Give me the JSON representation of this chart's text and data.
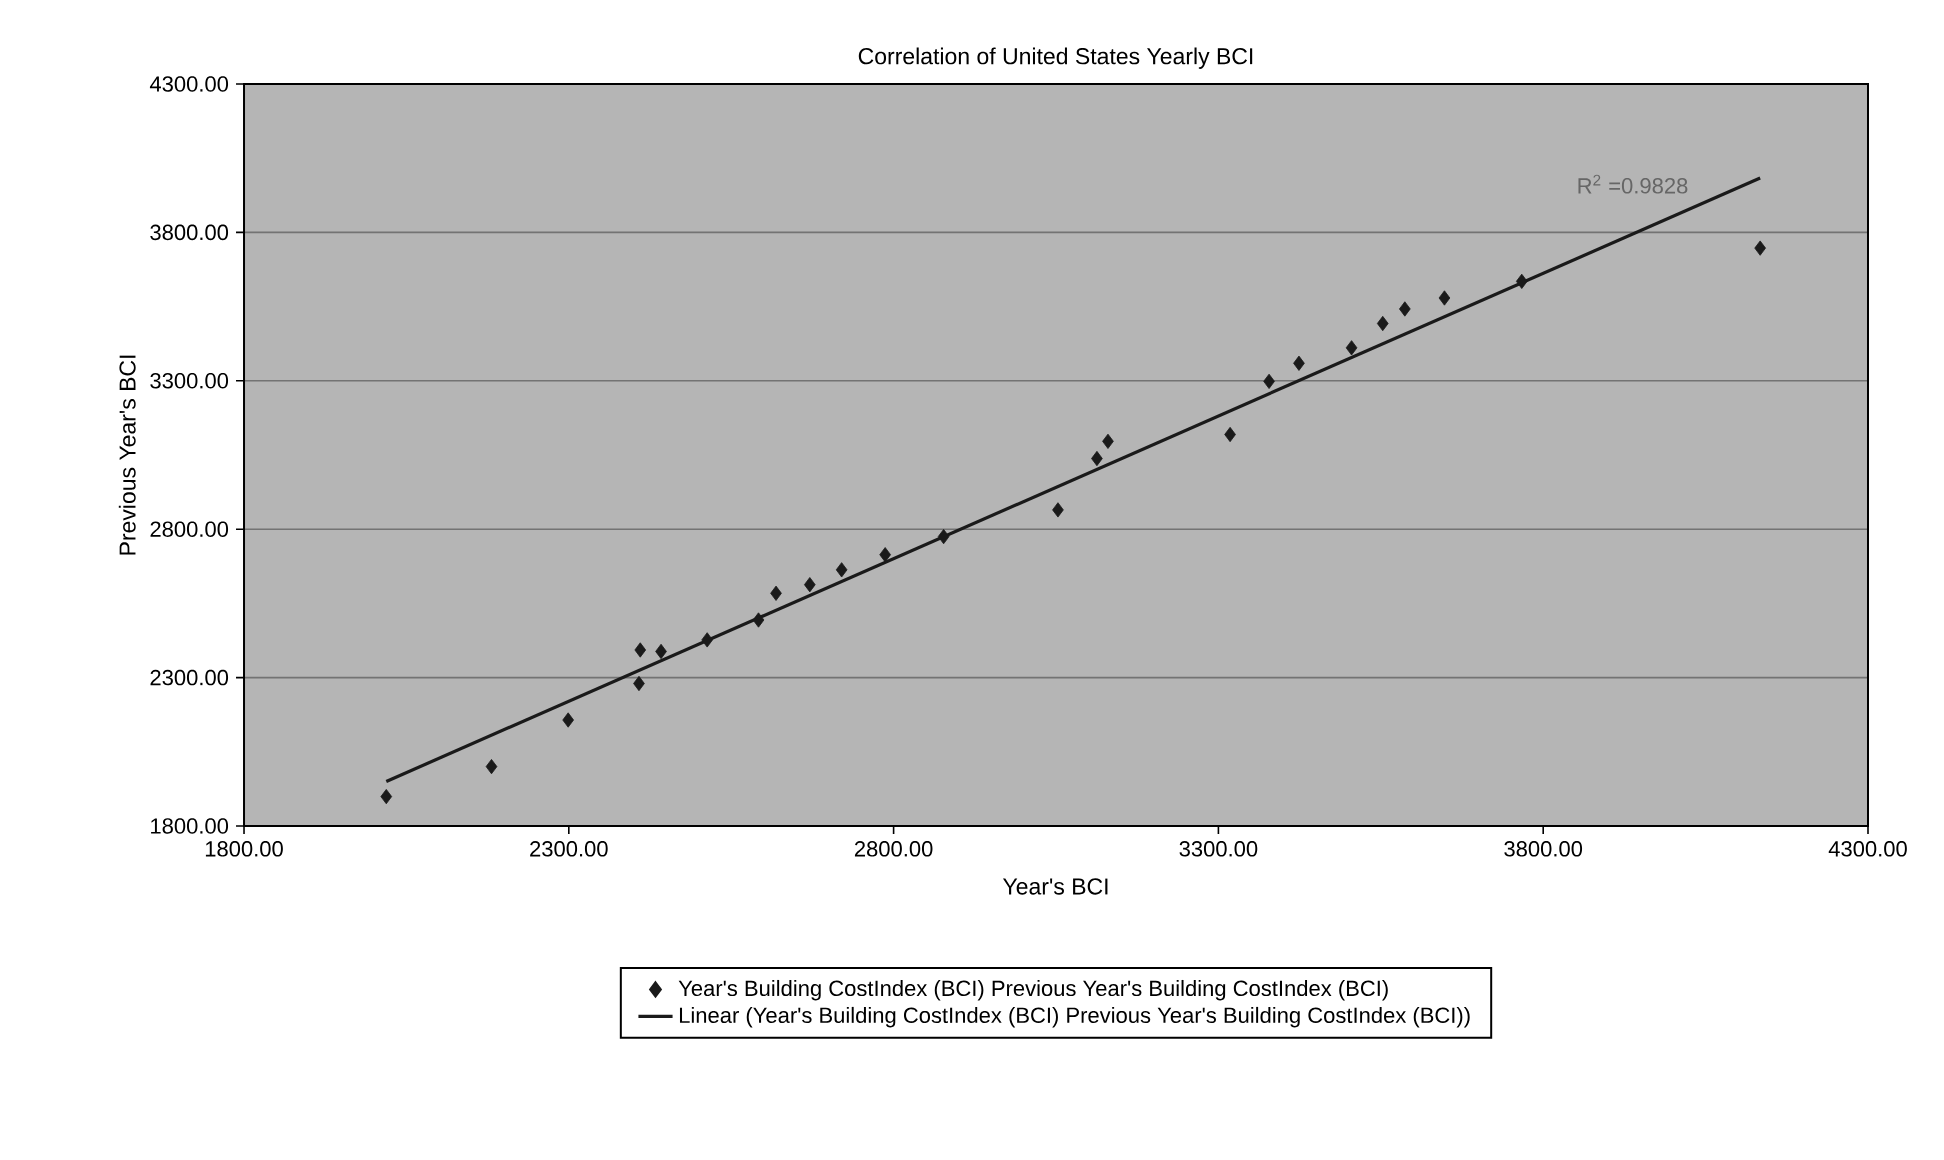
{
  "chart_data": {
    "type": "scatter",
    "title": "Correlation of United States Yearly BCI",
    "xlabel": "Year's BCI",
    "ylabel": "Previous Year's BCI",
    "xlim": [
      1800,
      4300
    ],
    "ylim": [
      1800,
      4300
    ],
    "xticks": [
      {
        "value": 1800,
        "label": "1800.00"
      },
      {
        "value": 2300,
        "label": "2300.00"
      },
      {
        "value": 2800,
        "label": "2800.00"
      },
      {
        "value": 3300,
        "label": "3300.00"
      },
      {
        "value": 3800,
        "label": "3800.00"
      },
      {
        "value": 4300,
        "label": "4300.00"
      }
    ],
    "yticks": [
      {
        "value": 1800,
        "label": "1800.00"
      },
      {
        "value": 2300,
        "label": "2300.00"
      },
      {
        "value": 2800,
        "label": "2800.00"
      },
      {
        "value": 3300,
        "label": "3300.00"
      },
      {
        "value": 3800,
        "label": "3800.00"
      },
      {
        "value": 4300,
        "label": "4300.00"
      }
    ],
    "grid": "y",
    "legend": "bottom",
    "series": [
      {
        "name": "Year's Building CostIndex (BCI) Previous Year's Building CostIndex (BCI)",
        "marker": "diamond",
        "color": "#1a1a1a",
        "x": [
          2019,
          2181,
          2299,
          2408,
          2410,
          2442,
          2513,
          2592,
          2619,
          2671,
          2720,
          2787,
          2877,
          3053,
          3113,
          3130,
          3318,
          3378,
          3424,
          3505,
          3553,
          3587,
          3648,
          3767,
          4134
        ],
        "values": [
          1899,
          2000,
          2157,
          2280,
          2393,
          2388,
          2427,
          2494,
          2584,
          2613,
          2663,
          2714,
          2775,
          2865,
          3038,
          3096,
          3119,
          3298,
          3359,
          3411,
          3493,
          3542,
          3579,
          3635,
          3747
        ]
      },
      {
        "name": "Linear (Year's Building CostIndex (BCI) Previous Year's Building CostIndex (BCI))",
        "type": "line",
        "marker": "none",
        "color": "#1a1a1a",
        "x": [
          2019,
          4134
        ],
        "values": [
          1950,
          3983
        ]
      }
    ],
    "annotations": [
      "R$^{2}$ =0.9828"
    ]
  }
}
